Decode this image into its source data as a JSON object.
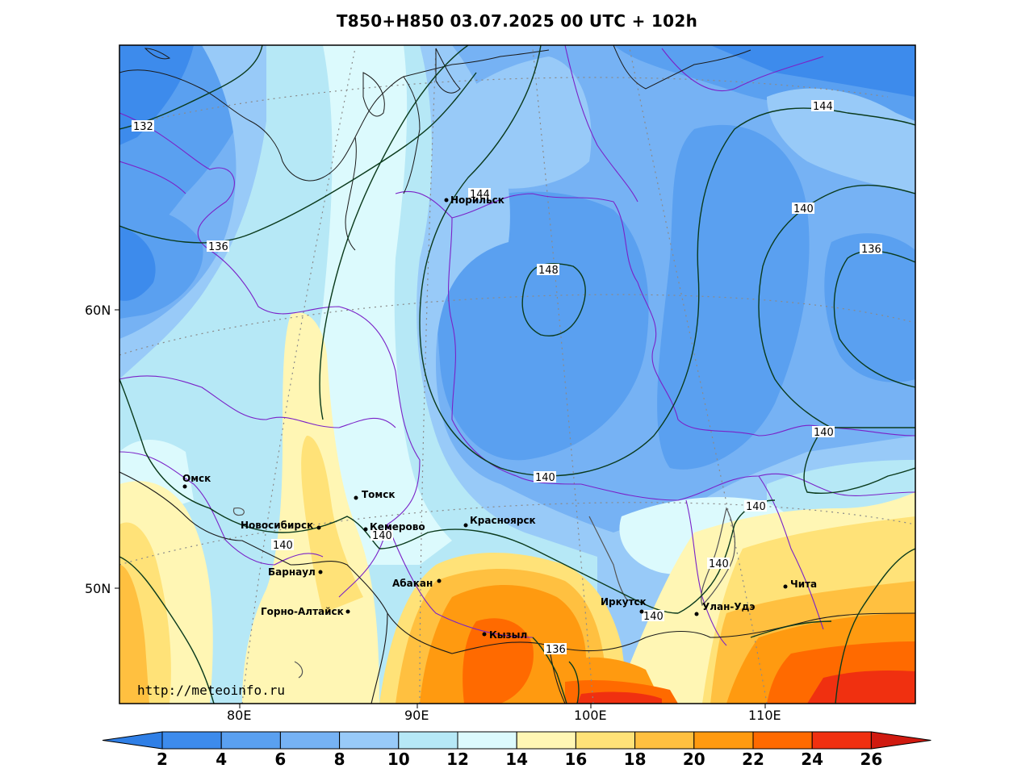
{
  "title": "T850+H850 03.07.2025 00 UTC + 102h",
  "watermark": "http://meteoinfo.ru",
  "lat_labels": [
    "60N",
    "50N"
  ],
  "lon_labels": [
    "80E",
    "90E",
    "100E",
    "110E"
  ],
  "colorbar": {
    "ticks": [
      "2",
      "4",
      "6",
      "8",
      "10",
      "12",
      "14",
      "16",
      "18",
      "20",
      "22",
      "24",
      "26"
    ],
    "colors": [
      "#2f7fe6",
      "#3d8bec",
      "#5aa0f0",
      "#76b2f4",
      "#98caf8",
      "#b6e8f6",
      "#dcfafd",
      "#fff6b4",
      "#ffe278",
      "#ffc040",
      "#ff9a10",
      "#ff6a00",
      "#f03010",
      "#d01a10"
    ]
  },
  "cities": [
    {
      "name": "Норильск"
    },
    {
      "name": "Омск"
    },
    {
      "name": "Томск"
    },
    {
      "name": "Новосибирск"
    },
    {
      "name": "Кемерово"
    },
    {
      "name": "Красноярск"
    },
    {
      "name": "Барнаул"
    },
    {
      "name": "Абакан"
    },
    {
      "name": "Горно-Алтайск"
    },
    {
      "name": "Кызыл"
    },
    {
      "name": "Иркутск"
    },
    {
      "name": "Улан-Удэ"
    },
    {
      "name": "Чита"
    }
  ],
  "contour_labels": [
    "132",
    "136",
    "144",
    "148",
    "144",
    "140",
    "136",
    "140",
    "140",
    "140",
    "140",
    "140",
    "140",
    "136",
    "140"
  ]
}
